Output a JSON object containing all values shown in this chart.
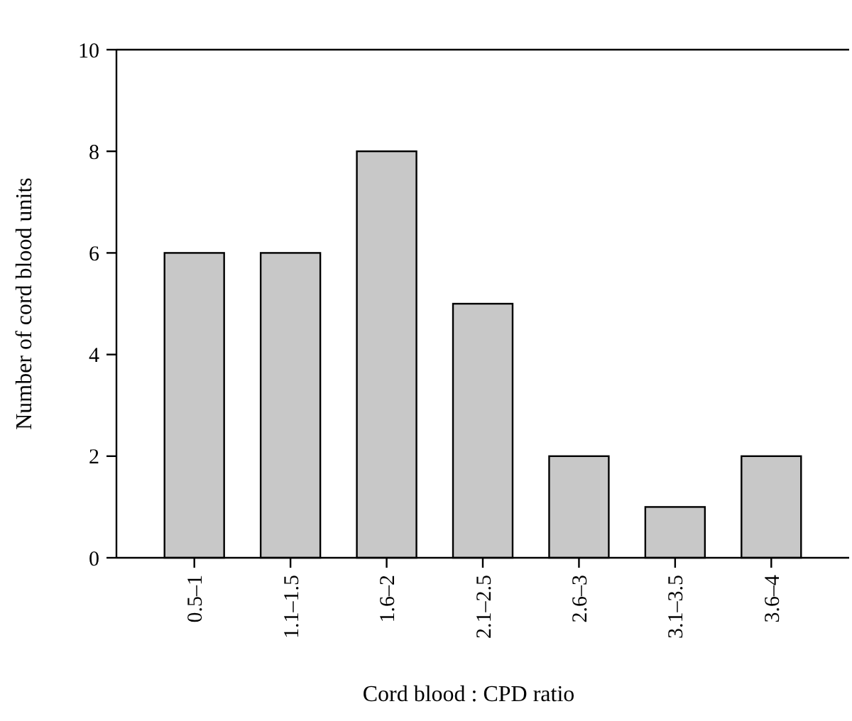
{
  "chart_data": {
    "type": "bar",
    "xlabel": "Cord blood : CPD ratio",
    "ylabel": "Number of cord blood units",
    "categories": [
      "0.5–1",
      "1.1–1.5",
      "1.6–2",
      "2.1–2.5",
      "2.6–3",
      "3.1–3.5",
      "3.6–4"
    ],
    "values": [
      6,
      6,
      8,
      5,
      2,
      1,
      2
    ],
    "color": "#c8c8c8",
    "ylim": [
      0,
      10
    ],
    "yticks": [
      0,
      2,
      4,
      6,
      8,
      10
    ],
    "grid": false
  }
}
